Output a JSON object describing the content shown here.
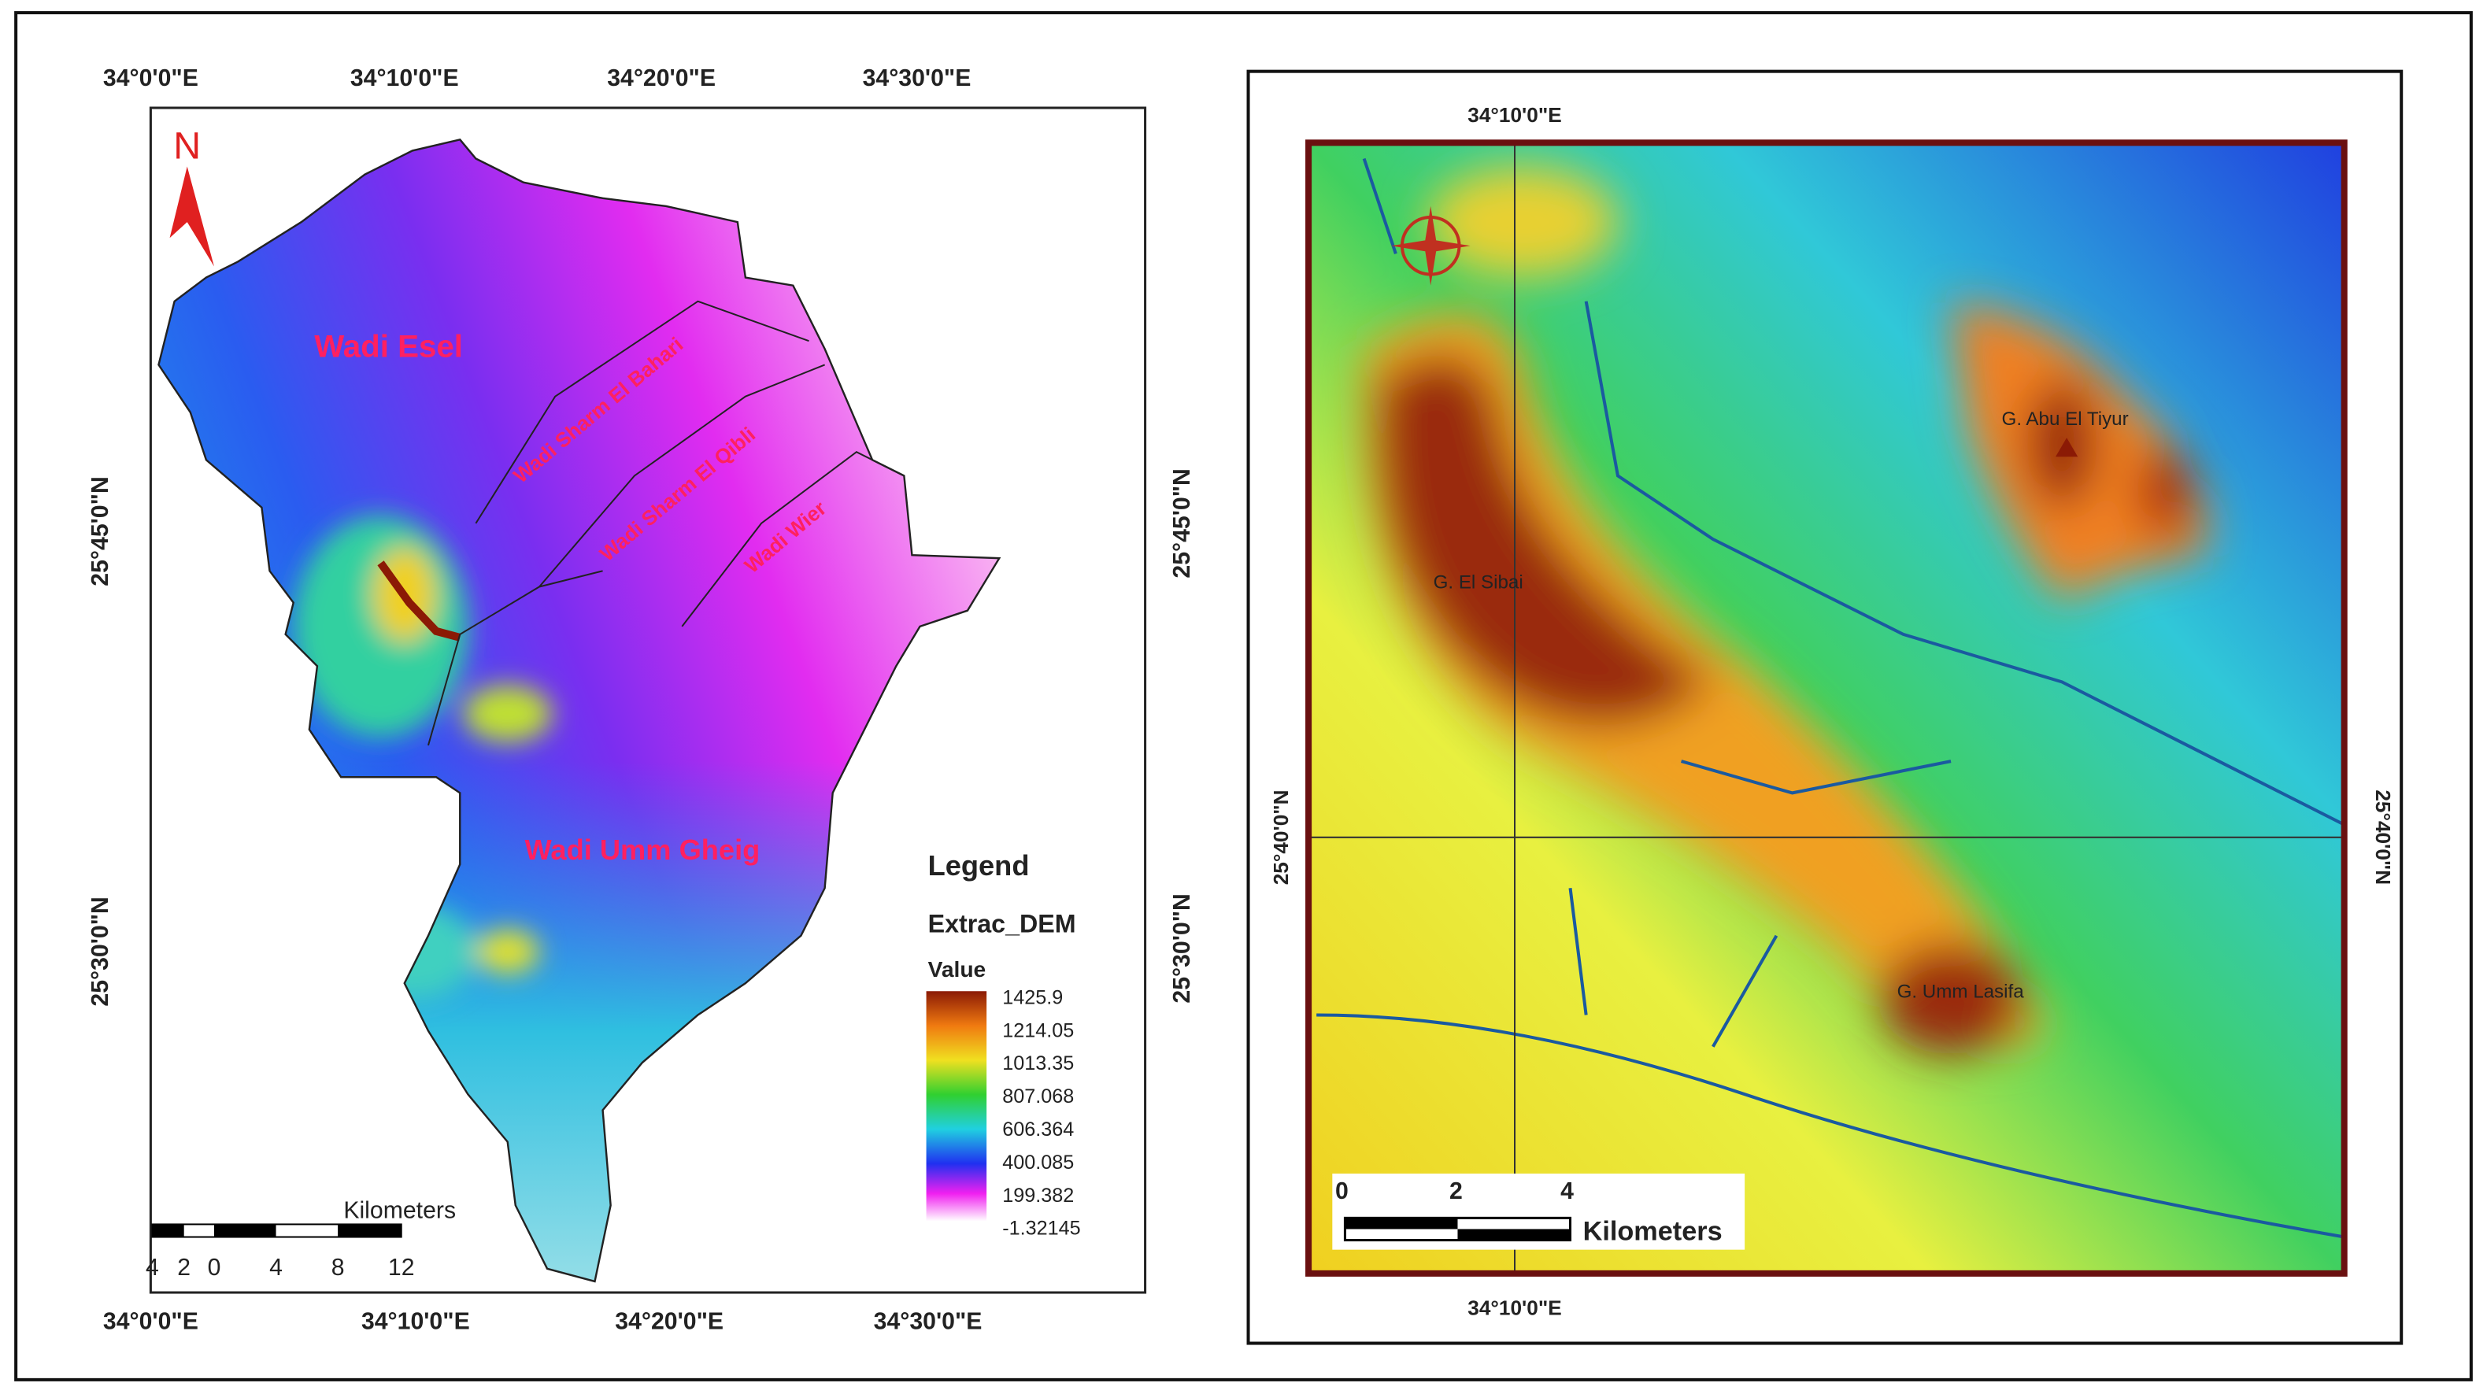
{
  "left_map": {
    "top_labels": [
      "34°0'0\"E",
      "34°10'0\"E",
      "34°20'0\"E",
      "34°30'0\"E"
    ],
    "bottom_labels": [
      "34°0'0\"E",
      "34°10'0\"E",
      "34°20'0\"E",
      "34°30'0\"E"
    ],
    "left_labels": [
      "25°45'0\"N",
      "25°30'0\"N"
    ],
    "right_labels": [
      "25°45'0\"N",
      "25°30'0\"N"
    ],
    "north": "N",
    "places": [
      "Wadi Esel",
      "Wadi Sharm El Bahari",
      "Wadi Sharm El Qibli",
      "Wadi Wier",
      "Wadi Umm Gheig"
    ],
    "legend": {
      "title": "Legend",
      "layer": "Extrac_DEM",
      "field": "Value",
      "values": [
        1425.9,
        1214.05,
        1013.35,
        807.068,
        606.364,
        400.085,
        199.382,
        -1.32145
      ]
    },
    "scale": {
      "unit": "Kilometers",
      "ticks": [
        4,
        2,
        0,
        4,
        8,
        12
      ]
    }
  },
  "right_map": {
    "top_label": "34°10'0\"E",
    "bottom_label": "34°10'0\"E",
    "left_label": "25°40'0\"N",
    "right_label": "25°40'0\"N",
    "places": [
      "G. Abu El Tiyur",
      "G. El Sibai",
      "G. Umm Lasifa"
    ],
    "scale": {
      "unit": "Kilometers",
      "ticks": [
        0,
        2,
        4
      ]
    }
  }
}
